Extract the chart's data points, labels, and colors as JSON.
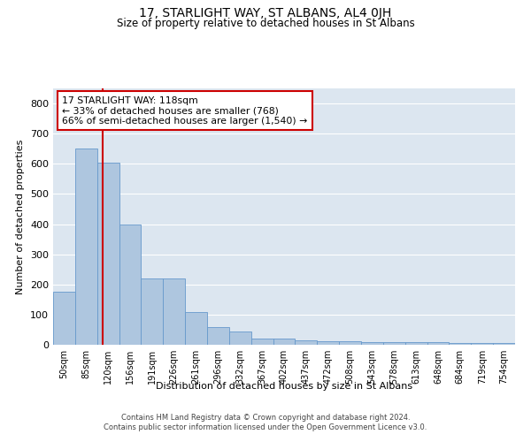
{
  "title": "17, STARLIGHT WAY, ST ALBANS, AL4 0JH",
  "subtitle": "Size of property relative to detached houses in St Albans",
  "xlabel": "Distribution of detached houses by size in St Albans",
  "ylabel": "Number of detached properties",
  "footer1": "Contains HM Land Registry data © Crown copyright and database right 2024.",
  "footer2": "Contains public sector information licensed under the Open Government Licence v3.0.",
  "annotation_line1": "17 STARLIGHT WAY: 118sqm",
  "annotation_line2": "← 33% of detached houses are smaller (768)",
  "annotation_line3": "66% of semi-detached houses are larger (1,540) →",
  "bar_labels": [
    "50sqm",
    "85sqm",
    "120sqm",
    "156sqm",
    "191sqm",
    "226sqm",
    "261sqm",
    "296sqm",
    "332sqm",
    "367sqm",
    "402sqm",
    "437sqm",
    "472sqm",
    "508sqm",
    "543sqm",
    "578sqm",
    "613sqm",
    "648sqm",
    "684sqm",
    "719sqm",
    "754sqm"
  ],
  "bar_values": [
    175,
    650,
    605,
    400,
    220,
    220,
    108,
    60,
    45,
    20,
    20,
    15,
    12,
    12,
    10,
    10,
    8,
    8,
    6,
    6,
    5
  ],
  "bar_color": "#aec6df",
  "bar_edge_color": "#6699cc",
  "background_color": "#dce6f0",
  "grid_color": "#ffffff",
  "red_line_x": 1.75,
  "red_line_color": "#cc0000",
  "annotation_box_color": "#cc0000",
  "ylim": [
    0,
    850
  ],
  "yticks": [
    0,
    100,
    200,
    300,
    400,
    500,
    600,
    700,
    800
  ]
}
